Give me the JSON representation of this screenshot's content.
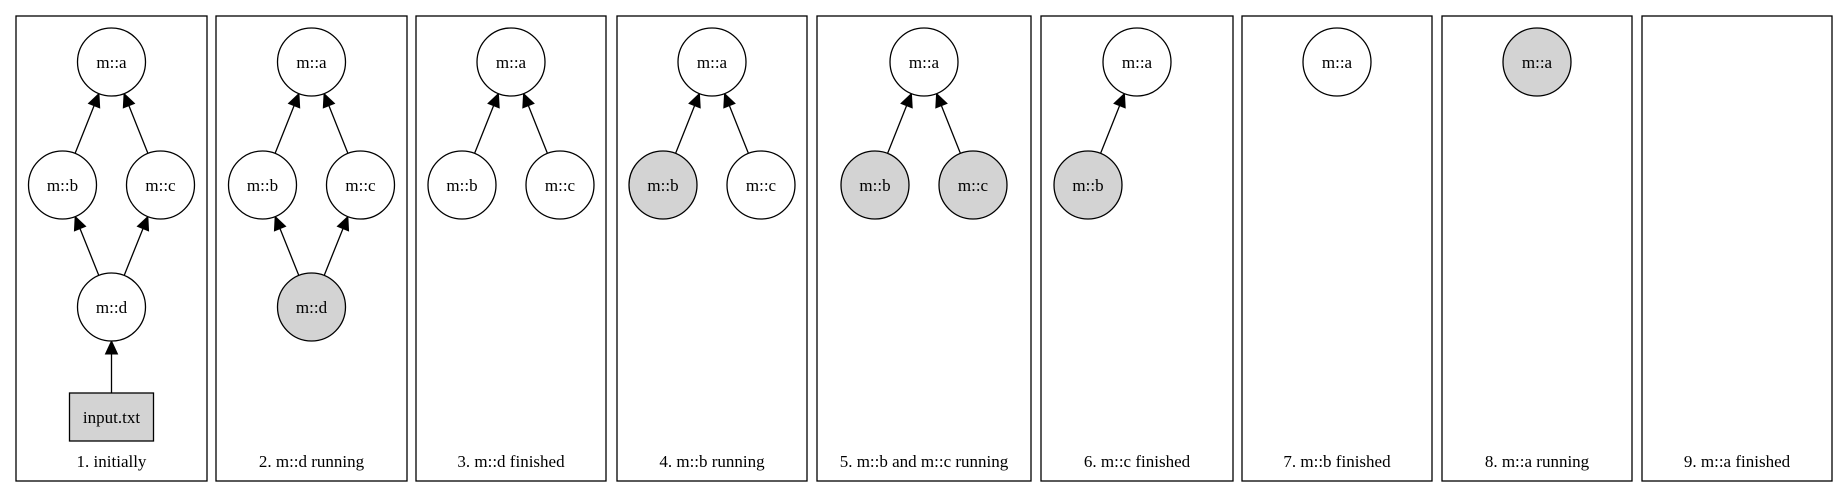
{
  "colors": {
    "running": "#d3d3d3",
    "idle": "#ffffff",
    "stroke": "#000000"
  },
  "panels": [
    {
      "caption": "1. initially",
      "nodes": [
        {
          "id": "a",
          "label": "m::a",
          "state": "idle"
        },
        {
          "id": "b",
          "label": "m::b",
          "state": "idle"
        },
        {
          "id": "c",
          "label": "m::c",
          "state": "idle"
        },
        {
          "id": "d",
          "label": "m::d",
          "state": "idle"
        },
        {
          "id": "input",
          "label": "input.txt",
          "state": "file"
        }
      ],
      "edges": [
        [
          "b",
          "a"
        ],
        [
          "c",
          "a"
        ],
        [
          "d",
          "b"
        ],
        [
          "d",
          "c"
        ],
        [
          "input",
          "d"
        ]
      ]
    },
    {
      "caption": "2. m::d running",
      "nodes": [
        {
          "id": "a",
          "label": "m::a",
          "state": "idle"
        },
        {
          "id": "b",
          "label": "m::b",
          "state": "idle"
        },
        {
          "id": "c",
          "label": "m::c",
          "state": "idle"
        },
        {
          "id": "d",
          "label": "m::d",
          "state": "running"
        }
      ],
      "edges": [
        [
          "b",
          "a"
        ],
        [
          "c",
          "a"
        ],
        [
          "d",
          "b"
        ],
        [
          "d",
          "c"
        ]
      ]
    },
    {
      "caption": "3. m::d finished",
      "nodes": [
        {
          "id": "a",
          "label": "m::a",
          "state": "idle"
        },
        {
          "id": "b",
          "label": "m::b",
          "state": "idle"
        },
        {
          "id": "c",
          "label": "m::c",
          "state": "idle"
        }
      ],
      "edges": [
        [
          "b",
          "a"
        ],
        [
          "c",
          "a"
        ]
      ]
    },
    {
      "caption": "4. m::b running",
      "nodes": [
        {
          "id": "a",
          "label": "m::a",
          "state": "idle"
        },
        {
          "id": "b",
          "label": "m::b",
          "state": "running"
        },
        {
          "id": "c",
          "label": "m::c",
          "state": "idle"
        }
      ],
      "edges": [
        [
          "b",
          "a"
        ],
        [
          "c",
          "a"
        ]
      ]
    },
    {
      "caption": "5. m::b and m::c running",
      "nodes": [
        {
          "id": "a",
          "label": "m::a",
          "state": "idle"
        },
        {
          "id": "b",
          "label": "m::b",
          "state": "running"
        },
        {
          "id": "c",
          "label": "m::c",
          "state": "running"
        }
      ],
      "edges": [
        [
          "b",
          "a"
        ],
        [
          "c",
          "a"
        ]
      ]
    },
    {
      "caption": "6. m::c finished",
      "nodes": [
        {
          "id": "a",
          "label": "m::a",
          "state": "idle"
        },
        {
          "id": "b",
          "label": "m::b",
          "state": "running"
        }
      ],
      "edges": [
        [
          "b",
          "a"
        ]
      ]
    },
    {
      "caption": "7. m::b finished",
      "nodes": [
        {
          "id": "a",
          "label": "m::a",
          "state": "idle"
        }
      ],
      "edges": []
    },
    {
      "caption": "8. m::a running",
      "nodes": [
        {
          "id": "a",
          "label": "m::a",
          "state": "running"
        }
      ],
      "edges": []
    },
    {
      "caption": "9. m::a finished",
      "nodes": [],
      "edges": []
    }
  ]
}
